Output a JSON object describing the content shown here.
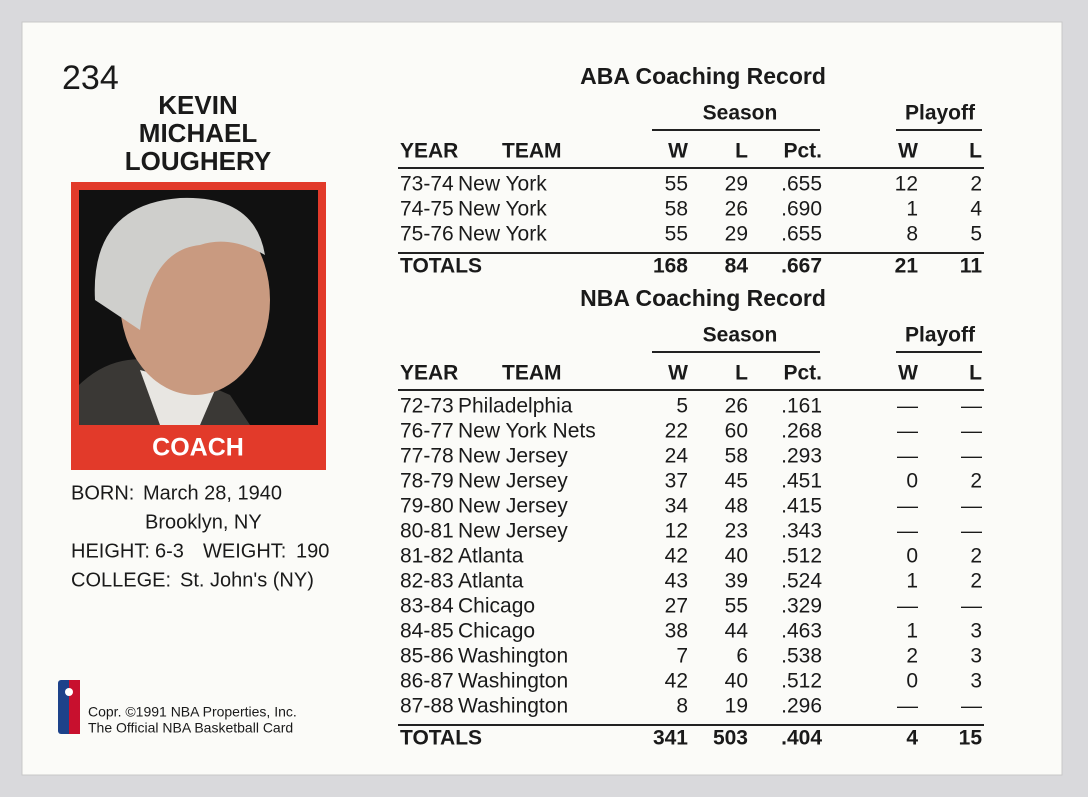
{
  "card_number": "234",
  "name": [
    "KEVIN",
    "MICHAEL",
    "LOUGHERY"
  ],
  "photo_label": "COACH",
  "bio": {
    "born_label": "BORN:",
    "born": "March 28, 1940",
    "birthplace": "Brooklyn, NY",
    "height_label": "HEIGHT:",
    "height": "6-3",
    "weight_label": "WEIGHT:",
    "weight": "190",
    "college_label": "COLLEGE:",
    "college": "St. John's (NY)"
  },
  "copyright": [
    "Copr. ©1991 NBA Properties, Inc.",
    "The Official NBA Basketball Card"
  ],
  "tables": [
    {
      "title": "ABA Coaching Record",
      "groups": [
        "Season",
        "Playoff"
      ],
      "columns": [
        "YEAR",
        "TEAM",
        "W",
        "L",
        "Pct.",
        "W",
        "L"
      ],
      "rows": [
        [
          "73-74",
          "New York",
          "55",
          "29",
          ".655",
          "12",
          "2"
        ],
        [
          "74-75",
          "New York",
          "58",
          "26",
          ".690",
          "1",
          "4"
        ],
        [
          "75-76",
          "New York",
          "55",
          "29",
          ".655",
          "8",
          "5"
        ]
      ],
      "totals": [
        "TOTALS",
        "168",
        "84",
        ".667",
        "21",
        "11"
      ]
    },
    {
      "title": "NBA Coaching Record",
      "groups": [
        "Season",
        "Playoff"
      ],
      "columns": [
        "YEAR",
        "TEAM",
        "W",
        "L",
        "Pct.",
        "W",
        "L"
      ],
      "rows": [
        [
          "72-73",
          "Philadelphia",
          "5",
          "26",
          ".161",
          "—",
          "—"
        ],
        [
          "76-77",
          "New York Nets",
          "22",
          "60",
          ".268",
          "—",
          "—"
        ],
        [
          "77-78",
          "New Jersey",
          "24",
          "58",
          ".293",
          "—",
          "—"
        ],
        [
          "78-79",
          "New Jersey",
          "37",
          "45",
          ".451",
          "0",
          "2"
        ],
        [
          "79-80",
          "New Jersey",
          "34",
          "48",
          ".415",
          "—",
          "—"
        ],
        [
          "80-81",
          "New Jersey",
          "12",
          "23",
          ".343",
          "—",
          "—"
        ],
        [
          "81-82",
          "Atlanta",
          "42",
          "40",
          ".512",
          "0",
          "2"
        ],
        [
          "82-83",
          "Atlanta",
          "43",
          "39",
          ".524",
          "1",
          "2"
        ],
        [
          "83-84",
          "Chicago",
          "27",
          "55",
          ".329",
          "—",
          "—"
        ],
        [
          "84-85",
          "Chicago",
          "38",
          "44",
          ".463",
          "1",
          "3"
        ],
        [
          "85-86",
          "Washington",
          "7",
          "6",
          ".538",
          "2",
          "3"
        ],
        [
          "86-87",
          "Washington",
          "42",
          "40",
          ".512",
          "0",
          "3"
        ],
        [
          "87-88",
          "Washington",
          "8",
          "19",
          ".296",
          "—",
          "—"
        ]
      ],
      "totals": [
        "TOTALS",
        "341",
        "503",
        ".404",
        "4",
        "15"
      ]
    }
  ]
}
